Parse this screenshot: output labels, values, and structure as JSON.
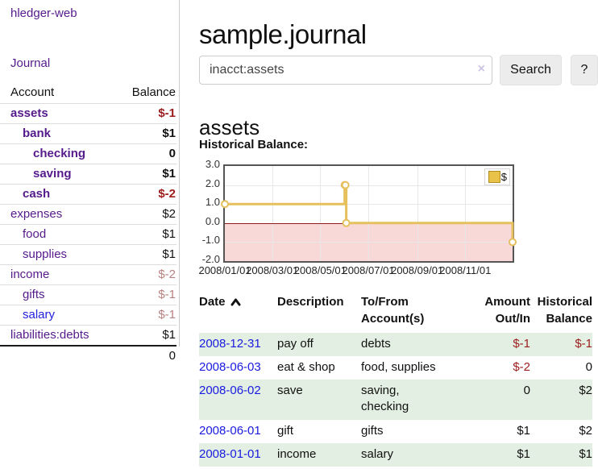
{
  "app": {
    "brand": "hledger-web",
    "nav_journal_label": "Journal"
  },
  "colors": {
    "link_purple": "#551a8b",
    "link_blue": "#1a1ae0",
    "negative_strong": "#9c1c1c",
    "negative_soft": "#b98080",
    "row_shade_green": "#e2efe2",
    "chart_line": "#e5c05c",
    "chart_negative_region": "#f9d8d8",
    "chart_zero_line": "#8f1a1a"
  },
  "sidebar": {
    "headers": {
      "account": "Account",
      "balance": "Balance"
    },
    "accounts": [
      {
        "name": "assets",
        "depth": 1,
        "bold": true,
        "balance": "$-1",
        "neg": "strong",
        "blue": false
      },
      {
        "name": "bank",
        "depth": 2,
        "bold": true,
        "balance": "$1",
        "neg": "none",
        "blue": false
      },
      {
        "name": "checking",
        "depth": 3,
        "bold": true,
        "balance": "0",
        "neg": "none",
        "blue": false
      },
      {
        "name": "saving",
        "depth": 3,
        "bold": true,
        "balance": "$1",
        "neg": "none",
        "blue": false
      },
      {
        "name": "cash",
        "depth": 2,
        "bold": true,
        "balance": "$-2",
        "neg": "strong",
        "blue": false
      },
      {
        "name": "expenses",
        "depth": 1,
        "bold": false,
        "balance": "$2",
        "neg": "none",
        "blue": false
      },
      {
        "name": "food",
        "depth": 2,
        "bold": false,
        "balance": "$1",
        "neg": "none",
        "blue": false
      },
      {
        "name": "supplies",
        "depth": 2,
        "bold": false,
        "balance": "$1",
        "neg": "none",
        "blue": false
      },
      {
        "name": "income",
        "depth": 1,
        "bold": false,
        "balance": "$-2",
        "neg": "soft",
        "blue": false
      },
      {
        "name": "gifts",
        "depth": 2,
        "bold": false,
        "balance": "$-1",
        "neg": "soft",
        "blue": false
      },
      {
        "name": "salary",
        "depth": 2,
        "bold": false,
        "balance": "$-1",
        "neg": "soft",
        "blue": true
      },
      {
        "name": "liabilities:debts",
        "depth": 1,
        "bold": false,
        "balance": "$1",
        "neg": "none",
        "blue": false
      }
    ],
    "total": "0"
  },
  "main": {
    "title": "sample.journal",
    "search": {
      "value": "inacct:assets",
      "clear_icon": "×",
      "search_button": "Search",
      "help_button": "?"
    },
    "account_heading": "assets",
    "chart_label": "Historical Balance:"
  },
  "chart_data": {
    "type": "line",
    "step": true,
    "title": "Historical Balance",
    "legend": {
      "position": "top-right"
    },
    "series": [
      {
        "name": "$",
        "points": [
          {
            "date": "2008-01-01",
            "value": 1
          },
          {
            "date": "2008-06-01",
            "value": 2
          },
          {
            "date": "2008-06-02",
            "value": 2
          },
          {
            "date": "2008-06-03",
            "value": 0
          },
          {
            "date": "2008-12-31",
            "value": -1
          }
        ]
      }
    ],
    "x_ticks": [
      "2008/01/01",
      "2008/03/01",
      "2008/05/01",
      "2008/07/01",
      "2008/09/01",
      "2008/11/01"
    ],
    "y_ticks": [
      "3.0",
      "2.0",
      "1.0",
      "0.0",
      "-1.0",
      "-2.0"
    ],
    "ylim": [
      -2,
      3
    ],
    "xlim": [
      "2008-01-01",
      "2008-12-31"
    ],
    "grid": true,
    "negative_region_shaded": true
  },
  "register": {
    "headers": [
      {
        "lines": [
          "Date"
        ],
        "align": "left",
        "sortable": true
      },
      {
        "lines": [
          "Description"
        ],
        "align": "left",
        "sortable": false
      },
      {
        "lines": [
          "To/From",
          "Account(s)"
        ],
        "align": "left",
        "sortable": false
      },
      {
        "lines": [
          "Amount",
          "Out/In"
        ],
        "align": "right",
        "sortable": false
      },
      {
        "lines": [
          "Historical",
          "Balance"
        ],
        "align": "right",
        "sortable": false
      }
    ],
    "rows": [
      {
        "date": "2008-12-31",
        "description": "pay off",
        "accounts": "debts",
        "amount": "$-1",
        "amount_neg": true,
        "balance": "$-1",
        "balance_neg": true,
        "shaded": true
      },
      {
        "date": "2008-06-03",
        "description": "eat & shop",
        "accounts": "food, supplies",
        "amount": "$-2",
        "amount_neg": true,
        "balance": "0",
        "balance_neg": false,
        "shaded": false
      },
      {
        "date": "2008-06-02",
        "description": "save",
        "accounts": "saving, checking",
        "amount": "0",
        "amount_neg": false,
        "balance": "$2",
        "balance_neg": false,
        "shaded": true
      },
      {
        "date": "2008-06-01",
        "description": "gift",
        "accounts": "gifts",
        "amount": "$1",
        "amount_neg": false,
        "balance": "$2",
        "balance_neg": false,
        "shaded": false
      },
      {
        "date": "2008-01-01",
        "description": "income",
        "accounts": "salary",
        "amount": "$1",
        "amount_neg": false,
        "balance": "$1",
        "balance_neg": false,
        "shaded": true
      }
    ]
  }
}
